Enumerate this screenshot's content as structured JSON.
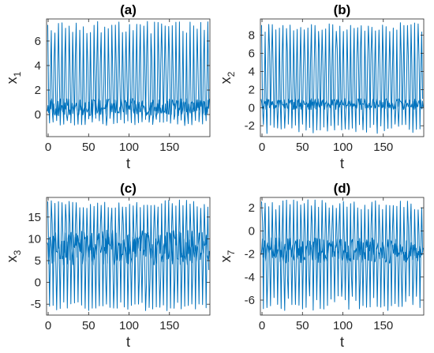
{
  "figure": {
    "background": "#ffffff",
    "line_color": "#0072BD"
  },
  "chart_data": [
    {
      "type": "line",
      "title": "(a)",
      "xlabel": "t",
      "ylabel": "x",
      "ylabel_sub": "1",
      "xlim": [
        -2,
        200
      ],
      "ylim": [
        -1.8,
        7.8
      ],
      "xticks": [
        0,
        50,
        100,
        150
      ],
      "yticks": [
        0,
        2,
        4,
        6
      ],
      "series": [
        {
          "color": "#0072BD",
          "period": 4.4,
          "upper_range": [
            6.6,
            7.6
          ],
          "lower_range": [
            -0.9,
            -0.3
          ],
          "core_range": [
            -0.1,
            1.3
          ],
          "mid_range": [
            2.5,
            4.8
          ]
        }
      ]
    },
    {
      "type": "line",
      "title": "(b)",
      "xlabel": "t",
      "ylabel": "x",
      "ylabel_sub": "2",
      "xlim": [
        -2,
        200
      ],
      "ylim": [
        -3.2,
        9.8
      ],
      "xticks": [
        0,
        50,
        100,
        150
      ],
      "yticks": [
        -2,
        0,
        2,
        4,
        6,
        8
      ],
      "series": [
        {
          "color": "#0072BD",
          "period": 4.4,
          "upper_range": [
            8.3,
            9.4
          ],
          "lower_range": [
            -2.9,
            -1.8
          ],
          "core_range": [
            -0.2,
            1.0
          ],
          "mid_range": [
            3.0,
            6.5
          ]
        }
      ]
    },
    {
      "type": "line",
      "title": "(c)",
      "xlabel": "t",
      "ylabel": "x",
      "ylabel_sub": "3",
      "xlim": [
        -2,
        200
      ],
      "ylim": [
        -7.5,
        19.5
      ],
      "xticks": [
        0,
        50,
        100,
        150
      ],
      "yticks": [
        -5,
        0,
        5,
        10,
        15
      ],
      "series": [
        {
          "color": "#0072BD",
          "period": 4.4,
          "upper_range": [
            17.0,
            19.0
          ],
          "lower_range": [
            -6.5,
            -4.5
          ],
          "core_range": [
            4.0,
            12.0
          ],
          "mid_range": [
            0.0,
            14.0
          ]
        }
      ]
    },
    {
      "type": "line",
      "title": "(d)",
      "xlabel": "t",
      "ylabel": "x",
      "ylabel_sub": "7",
      "xlim": [
        -2,
        200
      ],
      "ylim": [
        -7.3,
        2.9
      ],
      "xticks": [
        0,
        50,
        100,
        150
      ],
      "yticks": [
        -6,
        -4,
        -2,
        0,
        2
      ],
      "series": [
        {
          "color": "#0072BD",
          "period": 4.4,
          "upper_range": [
            1.8,
            2.7
          ],
          "lower_range": [
            -6.9,
            -5.6
          ],
          "core_range": [
            -2.8,
            -0.6
          ],
          "mid_range": [
            -4.2,
            0.8
          ]
        }
      ]
    }
  ]
}
